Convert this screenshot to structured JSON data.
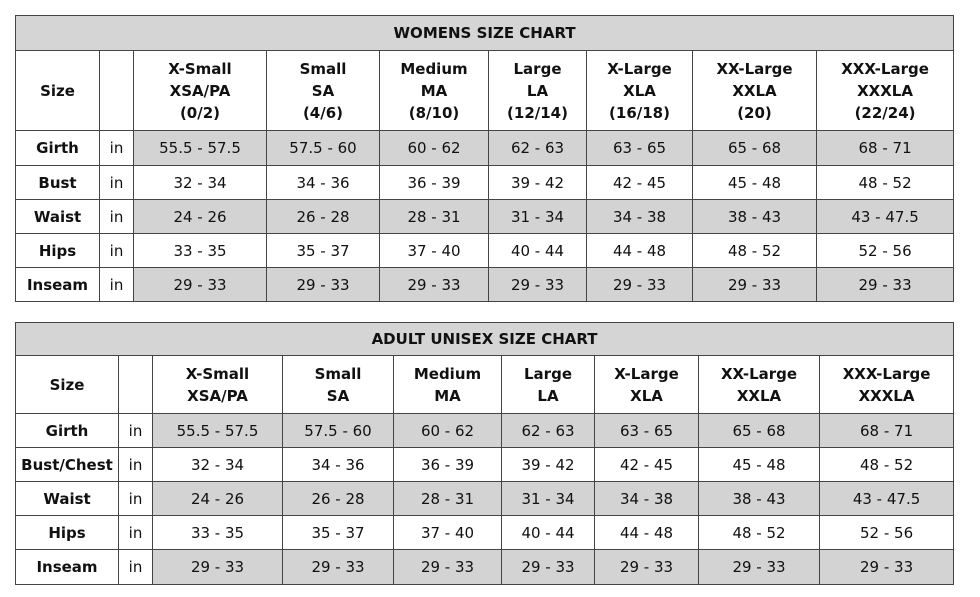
{
  "tables": [
    {
      "title": "WOMENS SIZE CHART",
      "size_label": "Size",
      "columns": [
        [
          "X-Small",
          "XSA/PA",
          "(0/2)"
        ],
        [
          "Small",
          "SA",
          "(4/6)"
        ],
        [
          "Medium",
          "MA",
          "(8/10)"
        ],
        [
          "Large",
          "LA",
          "(12/14)"
        ],
        [
          "X-Large",
          "XLA",
          "(16/18)"
        ],
        [
          "XX-Large",
          "XXLA",
          "(20)"
        ],
        [
          "XXX-Large",
          "XXXLA",
          "(22/24)"
        ]
      ],
      "rows": [
        {
          "label": "Girth",
          "unit": "in",
          "values": [
            "55.5 - 57.5",
            "57.5 - 60",
            "60 - 62",
            "62 - 63",
            "63 - 65",
            "65 - 68",
            "68 - 71"
          ]
        },
        {
          "label": "Bust",
          "unit": "in",
          "values": [
            "32 - 34",
            "34 - 36",
            "36 - 39",
            "39 - 42",
            "42 - 45",
            "45 - 48",
            "48 - 52"
          ]
        },
        {
          "label": "Waist",
          "unit": "in",
          "values": [
            "24 - 26",
            "26 - 28",
            "28 - 31",
            "31 - 34",
            "34 - 38",
            "38 - 43",
            "43 - 47.5"
          ]
        },
        {
          "label": "Hips",
          "unit": "in",
          "values": [
            "33 - 35",
            "35 - 37",
            "37 - 40",
            "40 - 44",
            "44 - 48",
            "48 - 52",
            "52 - 56"
          ]
        },
        {
          "label": "Inseam",
          "unit": "in",
          "values": [
            "29 - 33",
            "29 - 33",
            "29 - 33",
            "29 - 33",
            "29 - 33",
            "29 - 33",
            "29 - 33"
          ]
        }
      ]
    },
    {
      "title": "ADULT UNISEX SIZE CHART",
      "size_label": "Size",
      "columns": [
        [
          "X-Small",
          "XSA/PA"
        ],
        [
          "Small",
          "SA"
        ],
        [
          "Medium",
          "MA"
        ],
        [
          "Large",
          "LA"
        ],
        [
          "X-Large",
          "XLA"
        ],
        [
          "XX-Large",
          "XXLA"
        ],
        [
          "XXX-Large",
          "XXXLA"
        ]
      ],
      "rows": [
        {
          "label": "Girth",
          "unit": "in",
          "values": [
            "55.5 - 57.5",
            "57.5 - 60",
            "60 - 62",
            "62 - 63",
            "63 - 65",
            "65 - 68",
            "68 - 71"
          ]
        },
        {
          "label": "Bust/Chest",
          "unit": "in",
          "values": [
            "32 - 34",
            "34 - 36",
            "36 - 39",
            "39 - 42",
            "42 - 45",
            "45 - 48",
            "48 - 52"
          ]
        },
        {
          "label": "Waist",
          "unit": "in",
          "values": [
            "24 - 26",
            "26 - 28",
            "28 - 31",
            "31 - 34",
            "34 - 38",
            "38 - 43",
            "43 - 47.5"
          ]
        },
        {
          "label": "Hips",
          "unit": "in",
          "values": [
            "33 - 35",
            "35 - 37",
            "37 - 40",
            "40 - 44",
            "44 - 48",
            "48 - 52",
            "52 - 56"
          ]
        },
        {
          "label": "Inseam",
          "unit": "in",
          "values": [
            "29 - 33",
            "29 - 33",
            "29 - 33",
            "29 - 33",
            "29 - 33",
            "29 - 33",
            "29 - 33"
          ]
        }
      ]
    }
  ]
}
